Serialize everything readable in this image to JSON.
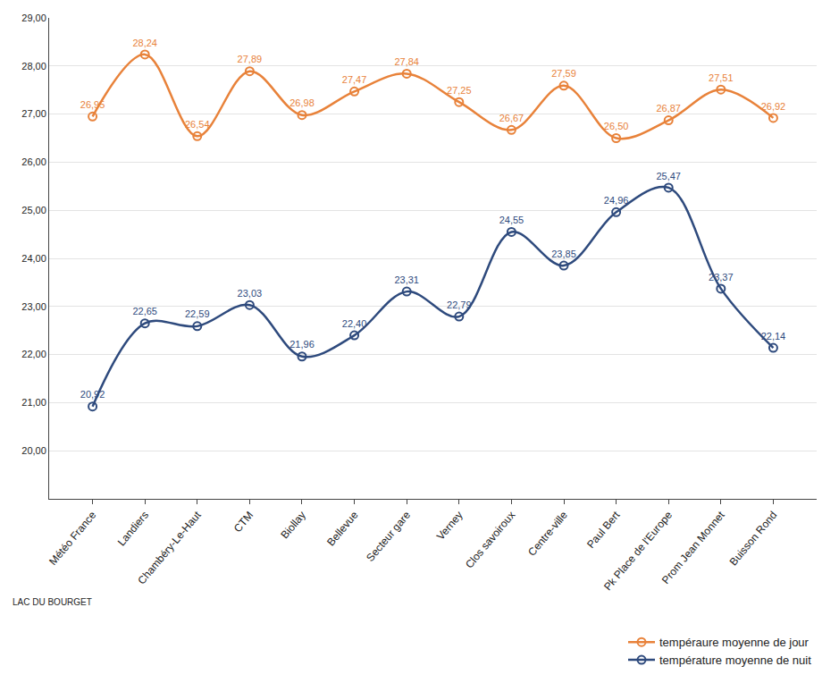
{
  "chart_data": {
    "type": "line",
    "categories": [
      "Météo France",
      "Landiers",
      "Chambéry-Le-Haut",
      "CTM",
      "Biollay",
      "Bellevue",
      "Secteur gare",
      "Verney",
      "Clos savoiroux",
      "Centre-ville",
      "Paul Bert",
      "Pk Place de l'Europe",
      "Prom Jean Monnet",
      "Buisson Rond"
    ],
    "series": [
      {
        "name": "tempéraure moyenne de jour",
        "color": "#e8823a",
        "marker": "circle-open",
        "line_style": "spline",
        "values": [
          26.95,
          28.24,
          26.54,
          27.89,
          26.98,
          27.47,
          27.84,
          27.25,
          26.67,
          27.59,
          26.5,
          26.87,
          27.51,
          26.92
        ],
        "value_labels": [
          "26,95",
          "28,24",
          "26,54",
          "27,89",
          "26,98",
          "27,47",
          "27,84",
          "27,25",
          "26,67",
          "27,59",
          "26,50",
          "26,87",
          "27,51",
          "26,92"
        ]
      },
      {
        "name": "température moyenne de nuit",
        "color": "#2e4a7d",
        "marker": "circle-open",
        "line_style": "spline",
        "values": [
          20.92,
          22.65,
          22.59,
          23.03,
          21.96,
          22.4,
          23.31,
          22.79,
          24.55,
          23.85,
          24.96,
          25.47,
          23.37,
          22.14
        ],
        "value_labels": [
          "20,92",
          "22,65",
          "22,59",
          "23,03",
          "21,96",
          "22,40",
          "23,31",
          "22,79",
          "24,55",
          "23,85",
          "24,96",
          "25,47",
          "23,37",
          "22,14"
        ]
      }
    ],
    "ylim": [
      19,
      29
    ],
    "yticks": [
      {
        "value": 20,
        "label": "20,00"
      },
      {
        "value": 21,
        "label": "21,00"
      },
      {
        "value": 22,
        "label": "22,00"
      },
      {
        "value": 23,
        "label": "23,00"
      },
      {
        "value": 24,
        "label": "24,00"
      },
      {
        "value": 25,
        "label": "25,00"
      },
      {
        "value": 26,
        "label": "26,00"
      },
      {
        "value": 27,
        "label": "27,00"
      },
      {
        "value": 28,
        "label": "28,00"
      },
      {
        "value": 29,
        "label": "29,00"
      }
    ],
    "annotations": [
      "LAC DU BOURGET"
    ],
    "data_labels": true,
    "grid": true,
    "legend": "bottom right"
  }
}
